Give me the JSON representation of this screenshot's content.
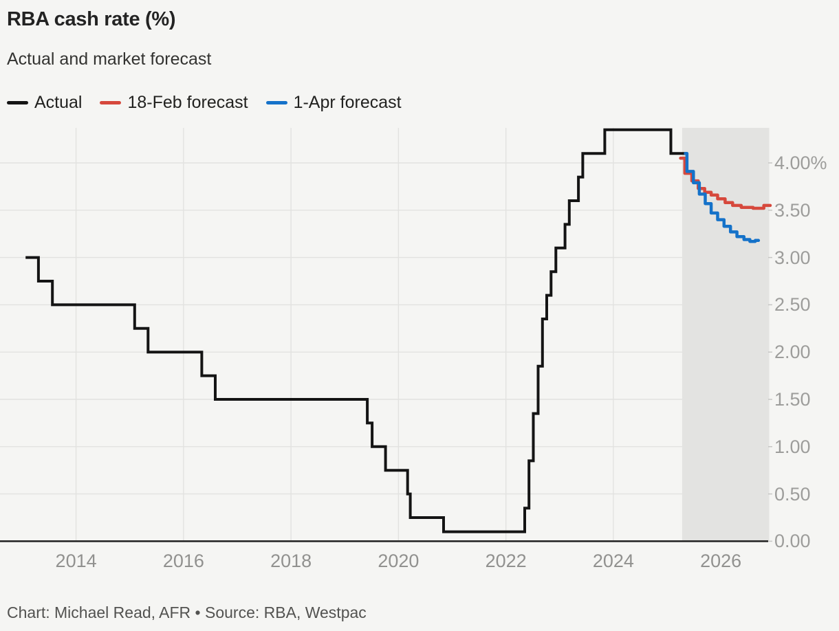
{
  "chart_data": {
    "type": "line",
    "variant": "step-after",
    "title": "RBA cash rate (%)",
    "subtitle": "Actual and market forecast",
    "xlabel": "",
    "ylabel": "",
    "x_domain": [
      2012.6,
      2026.95
    ],
    "y_domain": [
      0,
      4.37
    ],
    "grid": true,
    "legend_position": "top-left",
    "colors": {
      "background": "#f5f5f3",
      "gridline": "#e2e2e0",
      "axis": "#1f1f1f",
      "tick_stub": "#c6c6c4",
      "tick_text": "#9d9d9b",
      "forecast_shade": "#e3e3e1"
    },
    "x_ticks": [
      {
        "value": 2014,
        "label": "2014"
      },
      {
        "value": 2016,
        "label": "2016"
      },
      {
        "value": 2018,
        "label": "2018"
      },
      {
        "value": 2020,
        "label": "2020"
      },
      {
        "value": 2022,
        "label": "2022"
      },
      {
        "value": 2024,
        "label": "2024"
      },
      {
        "value": 2026,
        "label": "2026"
      }
    ],
    "y_ticks": [
      {
        "value": 0.0,
        "label": "0.00"
      },
      {
        "value": 0.5,
        "label": "0.50"
      },
      {
        "value": 1.0,
        "label": "1.00"
      },
      {
        "value": 1.5,
        "label": "1.50"
      },
      {
        "value": 2.0,
        "label": "2.00"
      },
      {
        "value": 2.5,
        "label": "2.50"
      },
      {
        "value": 3.0,
        "label": "3.00"
      },
      {
        "value": 3.5,
        "label": "3.50"
      },
      {
        "value": 4.0,
        "label": "4.00%"
      }
    ],
    "forecast_region": {
      "x_start": 2025.28,
      "x_end": 2026.9,
      "color": "#e3e3e1"
    },
    "series": [
      {
        "name": "Actual",
        "color": "#141414",
        "width": 4,
        "rounded": false,
        "points": [
          [
            2013.06,
            3.0
          ],
          [
            2013.3,
            2.75
          ],
          [
            2013.56,
            2.5
          ],
          [
            2015.09,
            2.25
          ],
          [
            2015.34,
            2.0
          ],
          [
            2016.34,
            1.75
          ],
          [
            2016.59,
            1.5
          ],
          [
            2019.42,
            1.25
          ],
          [
            2019.51,
            1.0
          ],
          [
            2019.76,
            0.75
          ],
          [
            2020.17,
            0.5
          ],
          [
            2020.22,
            0.25
          ],
          [
            2020.84,
            0.1
          ],
          [
            2022.35,
            0.35
          ],
          [
            2022.43,
            0.85
          ],
          [
            2022.51,
            1.35
          ],
          [
            2022.6,
            1.85
          ],
          [
            2022.68,
            2.35
          ],
          [
            2022.76,
            2.6
          ],
          [
            2022.84,
            2.85
          ],
          [
            2022.93,
            3.1
          ],
          [
            2023.1,
            3.35
          ],
          [
            2023.18,
            3.6
          ],
          [
            2023.35,
            3.85
          ],
          [
            2023.43,
            4.1
          ],
          [
            2023.84,
            4.35
          ],
          [
            2025.07,
            4.1
          ],
          [
            2025.34,
            4.1
          ]
        ]
      },
      {
        "name": "18-Feb forecast",
        "color": "#d6483c",
        "width": 4.5,
        "rounded": true,
        "points": [
          [
            2025.25,
            4.05
          ],
          [
            2025.33,
            3.89
          ],
          [
            2025.46,
            3.81
          ],
          [
            2025.58,
            3.73
          ],
          [
            2025.7,
            3.69
          ],
          [
            2025.82,
            3.66
          ],
          [
            2025.94,
            3.62
          ],
          [
            2026.08,
            3.58
          ],
          [
            2026.22,
            3.55
          ],
          [
            2026.38,
            3.53
          ],
          [
            2026.6,
            3.52
          ],
          [
            2026.8,
            3.55
          ],
          [
            2026.92,
            3.55
          ]
        ]
      },
      {
        "name": "1-Apr forecast",
        "color": "#1572c9",
        "width": 4.5,
        "rounded": true,
        "points": [
          [
            2025.34,
            4.1
          ],
          [
            2025.37,
            3.91
          ],
          [
            2025.49,
            3.79
          ],
          [
            2025.6,
            3.67
          ],
          [
            2025.71,
            3.57
          ],
          [
            2025.82,
            3.47
          ],
          [
            2025.94,
            3.4
          ],
          [
            2026.06,
            3.33
          ],
          [
            2026.18,
            3.27
          ],
          [
            2026.3,
            3.22
          ],
          [
            2026.43,
            3.19
          ],
          [
            2026.54,
            3.17
          ],
          [
            2026.64,
            3.18
          ],
          [
            2026.7,
            3.18
          ]
        ]
      }
    ]
  },
  "footer": {
    "credit": "Chart: Michael Read, AFR • Source: RBA, Westpac"
  }
}
